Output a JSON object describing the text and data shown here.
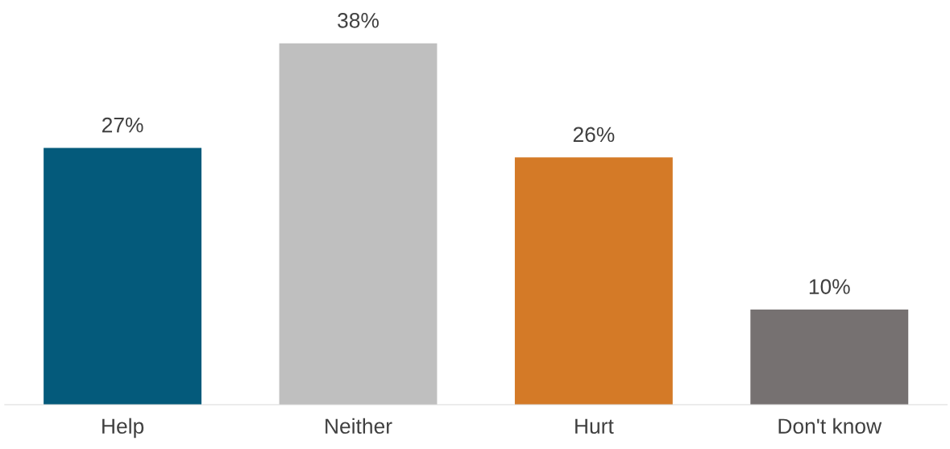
{
  "chart_data": {
    "type": "bar",
    "categories": [
      "Help",
      "Neither",
      "Hurt",
      "Don't know"
    ],
    "values": [
      27,
      38,
      26,
      10
    ],
    "colors": [
      "#045a7b",
      "#bfbfbf",
      "#d47a27",
      "#767171"
    ],
    "value_labels": [
      "27%",
      "38%",
      "26%",
      "10%"
    ],
    "grid": false,
    "legend": false
  }
}
